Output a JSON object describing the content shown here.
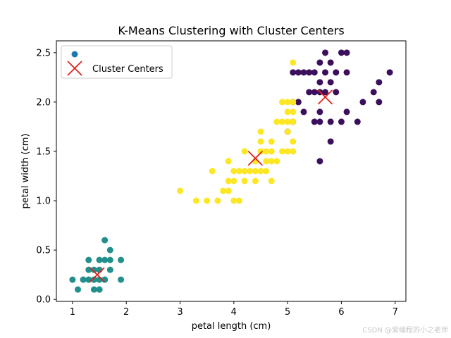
{
  "chart_data": {
    "type": "scatter",
    "title": "K-Means Clustering with Cluster Centers",
    "xlabel": "petal length (cm)",
    "ylabel": "petal width (cm)",
    "xlim": [
      0.7,
      7.2
    ],
    "ylim": [
      -0.02,
      2.62
    ],
    "xticks": [
      1,
      2,
      3,
      4,
      5,
      6,
      7
    ],
    "xtick_labels": [
      "1",
      "2",
      "3",
      "4",
      "5",
      "6",
      "7"
    ],
    "yticks": [
      0.0,
      0.5,
      1.0,
      1.5,
      2.0,
      2.5
    ],
    "ytick_labels": [
      "0.0",
      "0.5",
      "1.0",
      "1.5",
      "2.0",
      "2.5"
    ],
    "grid": false,
    "legend": {
      "position": "top-left",
      "entries": [
        {
          "label": "",
          "marker": "circle",
          "color": "#1f77b4"
        },
        {
          "label": "Cluster Centers",
          "marker": "x",
          "color": "#e0211b"
        }
      ]
    },
    "series": [
      {
        "cluster": 0,
        "color": "#3b0f5c",
        "points": [
          [
            5.6,
            1.4
          ],
          [
            5.7,
            2.5
          ],
          [
            5.8,
            2.4
          ],
          [
            5.8,
            2.2
          ],
          [
            5.8,
            1.8
          ],
          [
            5.8,
            1.6
          ],
          [
            5.9,
            2.3
          ],
          [
            5.9,
            2.1
          ],
          [
            6.0,
            2.5
          ],
          [
            6.0,
            1.8
          ],
          [
            6.1,
            2.5
          ],
          [
            6.1,
            2.3
          ],
          [
            6.1,
            1.9
          ],
          [
            6.3,
            1.8
          ],
          [
            6.4,
            2.0
          ],
          [
            6.6,
            2.1
          ],
          [
            6.7,
            2.2
          ],
          [
            6.7,
            2.0
          ],
          [
            6.9,
            2.3
          ],
          [
            5.1,
            2.3
          ],
          [
            5.2,
            2.3
          ],
          [
            5.3,
            2.3
          ],
          [
            5.4,
            2.3
          ],
          [
            5.4,
            2.1
          ],
          [
            5.5,
            2.1
          ],
          [
            5.5,
            1.8
          ],
          [
            5.6,
            2.4
          ],
          [
            5.6,
            2.2
          ],
          [
            5.6,
            2.1
          ],
          [
            5.7,
            2.3
          ],
          [
            5.7,
            2.1
          ],
          [
            5.1,
            2.0
          ],
          [
            5.2,
            2.0
          ],
          [
            5.3,
            1.9
          ],
          [
            5.0,
            1.7
          ],
          [
            5.1,
            1.8
          ],
          [
            5.6,
            1.8
          ],
          [
            5.6,
            1.9
          ],
          [
            5.5,
            2.3
          ]
        ]
      },
      {
        "cluster": 1,
        "color": "#21908d",
        "points": [
          [
            1.0,
            0.2
          ],
          [
            1.1,
            0.1
          ],
          [
            1.2,
            0.2
          ],
          [
            1.2,
            0.2
          ],
          [
            1.3,
            0.2
          ],
          [
            1.3,
            0.3
          ],
          [
            1.3,
            0.4
          ],
          [
            1.3,
            0.2
          ],
          [
            1.4,
            0.1
          ],
          [
            1.4,
            0.2
          ],
          [
            1.4,
            0.3
          ],
          [
            1.4,
            0.2
          ],
          [
            1.5,
            0.1
          ],
          [
            1.5,
            0.2
          ],
          [
            1.5,
            0.4
          ],
          [
            1.5,
            0.3
          ],
          [
            1.5,
            0.1
          ],
          [
            1.6,
            0.2
          ],
          [
            1.6,
            0.4
          ],
          [
            1.6,
            0.6
          ],
          [
            1.6,
            0.2
          ],
          [
            1.7,
            0.3
          ],
          [
            1.7,
            0.5
          ],
          [
            1.7,
            0.4
          ],
          [
            1.9,
            0.2
          ],
          [
            1.9,
            0.4
          ]
        ]
      },
      {
        "cluster": 2,
        "color": "#fde725",
        "points": [
          [
            3.0,
            1.1
          ],
          [
            3.3,
            1.0
          ],
          [
            3.5,
            1.0
          ],
          [
            3.6,
            1.3
          ],
          [
            3.7,
            1.0
          ],
          [
            3.8,
            1.1
          ],
          [
            3.9,
            1.1
          ],
          [
            3.9,
            1.4
          ],
          [
            3.9,
            1.2
          ],
          [
            4.0,
            1.0
          ],
          [
            4.0,
            1.3
          ],
          [
            4.0,
            1.2
          ],
          [
            4.1,
            1.0
          ],
          [
            4.1,
            1.3
          ],
          [
            4.2,
            1.3
          ],
          [
            4.2,
            1.2
          ],
          [
            4.2,
            1.5
          ],
          [
            4.3,
            1.3
          ],
          [
            4.4,
            1.4
          ],
          [
            4.4,
            1.2
          ],
          [
            4.4,
            1.3
          ],
          [
            4.5,
            1.5
          ],
          [
            4.5,
            1.3
          ],
          [
            4.5,
            1.7
          ],
          [
            4.5,
            1.6
          ],
          [
            4.6,
            1.5
          ],
          [
            4.6,
            1.4
          ],
          [
            4.6,
            1.3
          ],
          [
            4.7,
            1.4
          ],
          [
            4.7,
            1.5
          ],
          [
            4.7,
            1.2
          ],
          [
            4.7,
            1.6
          ],
          [
            4.8,
            1.8
          ],
          [
            4.8,
            1.4
          ],
          [
            4.9,
            1.5
          ],
          [
            4.9,
            1.8
          ],
          [
            4.9,
            2.0
          ],
          [
            5.0,
            1.7
          ],
          [
            5.0,
            1.5
          ],
          [
            5.0,
            2.0
          ],
          [
            5.0,
            1.9
          ],
          [
            5.1,
            1.9
          ],
          [
            5.1,
            1.6
          ],
          [
            5.1,
            1.5
          ],
          [
            5.1,
            2.4
          ],
          [
            5.1,
            2.0
          ],
          [
            5.1,
            1.8
          ],
          [
            5.0,
            1.8
          ]
        ]
      }
    ],
    "centers": [
      [
        5.7,
        2.05
      ],
      [
        1.46,
        0.25
      ],
      [
        4.4,
        1.43
      ]
    ],
    "center_label": "Cluster Centers"
  },
  "watermark": "CSDN @爱编程的小之老师"
}
